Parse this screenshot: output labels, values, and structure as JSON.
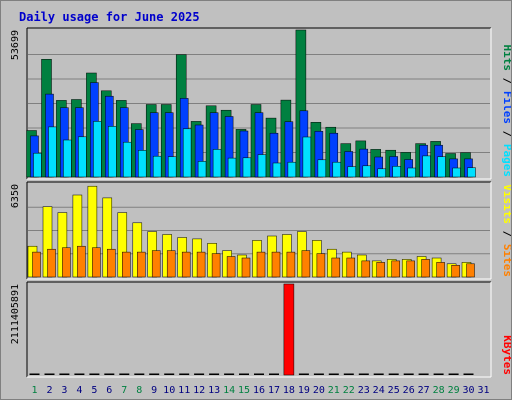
{
  "title": "Daily usage for June 2025",
  "colors": {
    "hits": "#008040",
    "files": "#0040ff",
    "pages": "#00e0ff",
    "visits": "#ffff00",
    "sites": "#ff8000",
    "kbytes": "#ff0000",
    "weekend": "#008040",
    "weekday": "#000080",
    "grid": "#808080",
    "panel": "#c0c0c0"
  },
  "chart_data": {
    "type": "bar",
    "categories": [
      "1",
      "2",
      "3",
      "4",
      "5",
      "6",
      "7",
      "8",
      "9",
      "10",
      "11",
      "12",
      "13",
      "14",
      "15",
      "16",
      "17",
      "18",
      "19",
      "20",
      "21",
      "22",
      "23",
      "24",
      "25",
      "26",
      "27",
      "28",
      "29",
      "30",
      "31"
    ],
    "weekend_days": [
      "1",
      "7",
      "8",
      "14",
      "15",
      "21",
      "22",
      "28",
      "29"
    ],
    "panels": [
      {
        "id": "hits",
        "ymax_label": "53699",
        "ymax": 53699,
        "legend": [
          {
            "text": "Hits",
            "color": "#008040"
          },
          {
            "text": "Files",
            "color": "#0040ff"
          },
          {
            "text": "Pages",
            "color": "#00e0ff"
          }
        ],
        "series": [
          {
            "name": "Hits",
            "values": [
              17000,
              43000,
              28000,
              28300,
              38000,
              31500,
              28000,
              19500,
              26500,
              26500,
              44700,
              20300,
              26000,
              24400,
              17400,
              26500,
              21500,
              28100,
              53699,
              20000,
              18200,
              12200,
              13200,
              10100,
              9800,
              9000,
              12200,
              13000,
              8600,
              8900,
              null
            ]
          },
          {
            "name": "Files",
            "values": [
              15000,
              30300,
              25300,
              25300,
              34500,
              29500,
              25300,
              17300,
              23500,
              23500,
              28700,
              19000,
              23500,
              22100,
              16800,
              23500,
              16000,
              20200,
              24200,
              16700,
              16000,
              9300,
              10200,
              7300,
              7500,
              6400,
              11600,
              11600,
              6600,
              6600,
              null
            ]
          },
          {
            "name": "Pages",
            "values": [
              8700,
              18300,
              13500,
              14700,
              20300,
              18500,
              12700,
              9700,
              7600,
              7400,
              17600,
              5700,
              10100,
              6900,
              7000,
              8200,
              5100,
              5400,
              14600,
              6300,
              5400,
              3800,
              4100,
              3000,
              3900,
              3300,
              7700,
              7400,
              3300,
              3400,
              null
            ]
          }
        ]
      },
      {
        "id": "visits",
        "ymax_label": "6350",
        "ymax": 6350,
        "legend": [
          {
            "text": "Visits",
            "color": "#ffff00"
          },
          {
            "text": "Sites",
            "color": "#ff8000"
          }
        ],
        "series": [
          {
            "name": "Visits",
            "values": [
              2100,
              4800,
              4400,
              5600,
              6200,
              5400,
              4400,
              3700,
              3100,
              2900,
              2700,
              2600,
              2300,
              1800,
              1500,
              2500,
              2800,
              2900,
              3100,
              2500,
              1900,
              1700,
              1500,
              1100,
              1200,
              1200,
              1400,
              1300,
              900,
              1000,
              null
            ]
          },
          {
            "name": "Sites",
            "values": [
              1700,
              1900,
              2000,
              2100,
              2000,
              1900,
              1700,
              1700,
              1800,
              1800,
              1700,
              1700,
              1600,
              1400,
              1300,
              1700,
              1700,
              1700,
              1800,
              1600,
              1300,
              1300,
              1100,
              1000,
              1100,
              1100,
              1200,
              1000,
              800,
              900,
              null
            ]
          }
        ]
      },
      {
        "id": "kbytes",
        "ymax_label": "2111405891",
        "ymax": 2111405891,
        "legend": [
          {
            "text": "KBytes",
            "color": "#ff0000"
          }
        ],
        "series": [
          {
            "name": "KBytes",
            "values": [
              0,
              0,
              0,
              0,
              0,
              0,
              0,
              0,
              0,
              0,
              0,
              0,
              0,
              0,
              0,
              0,
              0,
              2111405891,
              0,
              0,
              0,
              0,
              0,
              0,
              0,
              0,
              0,
              0,
              0,
              0,
              null
            ]
          }
        ]
      }
    ]
  }
}
